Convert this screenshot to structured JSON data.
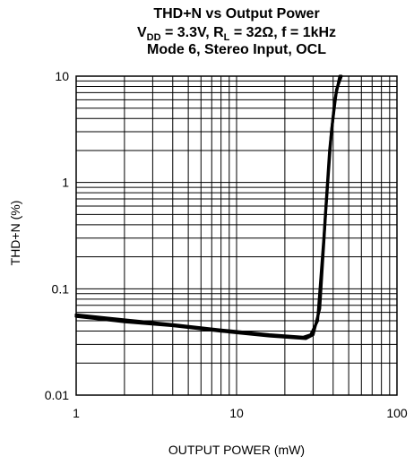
{
  "chart_data": {
    "type": "line",
    "title": {
      "line1": "THD+N vs Output Power",
      "line2": {
        "v": "V",
        "v_sub": "DD",
        "v_rest": " = 3.3V, R",
        "r_sub": "L",
        "r_rest": " = 32Ω, f = 1kHz"
      },
      "line3": "Mode 6, Stereo Input, OCL"
    },
    "xlabel": "OUTPUT POWER (mW)",
    "ylabel": "THD+N (%)",
    "xscale": "log",
    "yscale": "log",
    "xlim": [
      1,
      100
    ],
    "ylim": [
      0.01,
      10
    ],
    "xticks": [
      "1",
      "10",
      "100"
    ],
    "yticks": [
      "0.01",
      "0.1",
      "1",
      "10"
    ],
    "grid": true,
    "series": [
      {
        "color": "#000000",
        "points": [
          [
            1,
            0.057
          ],
          [
            2,
            0.051
          ],
          [
            4,
            0.046
          ],
          [
            8,
            0.041
          ],
          [
            16,
            0.037
          ],
          [
            26,
            0.035
          ],
          [
            29,
            0.037
          ],
          [
            32,
            0.05
          ],
          [
            35,
            0.3
          ],
          [
            38,
            2
          ],
          [
            41,
            6
          ],
          [
            44,
            10
          ]
        ]
      },
      {
        "color": "#000000",
        "points": [
          [
            1,
            0.055
          ],
          [
            2,
            0.049
          ],
          [
            4,
            0.045
          ],
          [
            8,
            0.04
          ],
          [
            16,
            0.036
          ],
          [
            27,
            0.034
          ],
          [
            30,
            0.037
          ],
          [
            33,
            0.065
          ],
          [
            36,
            0.55
          ],
          [
            39,
            3
          ],
          [
            42,
            7.5
          ],
          [
            45,
            10
          ]
        ]
      }
    ]
  }
}
